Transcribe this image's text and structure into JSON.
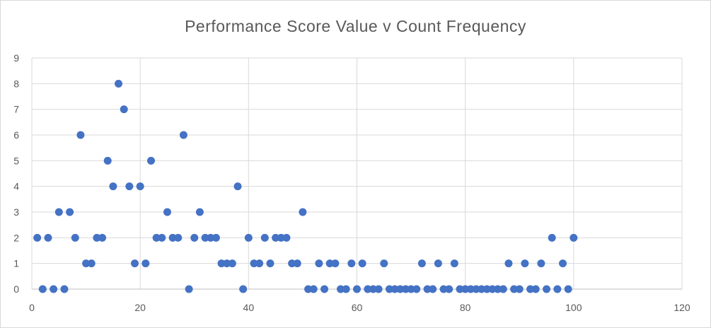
{
  "chart_data": {
    "type": "scatter",
    "title": "Performance Score Value v Count Frequency",
    "xlabel": "",
    "ylabel": "",
    "xlim": [
      0,
      120
    ],
    "ylim": [
      0,
      9
    ],
    "x_ticks": [
      0,
      20,
      40,
      60,
      80,
      100,
      120
    ],
    "y_ticks": [
      0,
      1,
      2,
      3,
      4,
      5,
      6,
      7,
      8,
      9
    ],
    "grid": true,
    "legend": "none",
    "marker_color": "#4472C4",
    "points": [
      [
        1,
        2
      ],
      [
        2,
        0
      ],
      [
        3,
        2
      ],
      [
        4,
        0
      ],
      [
        5,
        3
      ],
      [
        6,
        0
      ],
      [
        7,
        3
      ],
      [
        8,
        2
      ],
      [
        9,
        6
      ],
      [
        10,
        1
      ],
      [
        11,
        1
      ],
      [
        12,
        2
      ],
      [
        13,
        2
      ],
      [
        14,
        5
      ],
      [
        15,
        4
      ],
      [
        16,
        8
      ],
      [
        17,
        7
      ],
      [
        18,
        4
      ],
      [
        19,
        1
      ],
      [
        20,
        4
      ],
      [
        21,
        1
      ],
      [
        22,
        5
      ],
      [
        23,
        2
      ],
      [
        24,
        2
      ],
      [
        25,
        3
      ],
      [
        26,
        2
      ],
      [
        27,
        2
      ],
      [
        28,
        6
      ],
      [
        29,
        0
      ],
      [
        30,
        2
      ],
      [
        31,
        3
      ],
      [
        32,
        2
      ],
      [
        33,
        2
      ],
      [
        34,
        2
      ],
      [
        35,
        1
      ],
      [
        36,
        1
      ],
      [
        37,
        1
      ],
      [
        38,
        4
      ],
      [
        39,
        0
      ],
      [
        40,
        2
      ],
      [
        41,
        1
      ],
      [
        42,
        1
      ],
      [
        43,
        2
      ],
      [
        44,
        1
      ],
      [
        45,
        2
      ],
      [
        46,
        2
      ],
      [
        47,
        2
      ],
      [
        48,
        1
      ],
      [
        49,
        1
      ],
      [
        50,
        3
      ],
      [
        51,
        0
      ],
      [
        52,
        0
      ],
      [
        53,
        1
      ],
      [
        54,
        0
      ],
      [
        55,
        1
      ],
      [
        56,
        1
      ],
      [
        57,
        0
      ],
      [
        58,
        0
      ],
      [
        59,
        1
      ],
      [
        60,
        0
      ],
      [
        61,
        1
      ],
      [
        62,
        0
      ],
      [
        63,
        0
      ],
      [
        64,
        0
      ],
      [
        65,
        1
      ],
      [
        66,
        0
      ],
      [
        67,
        0
      ],
      [
        68,
        0
      ],
      [
        69,
        0
      ],
      [
        70,
        0
      ],
      [
        71,
        0
      ],
      [
        72,
        1
      ],
      [
        73,
        0
      ],
      [
        74,
        0
      ],
      [
        75,
        1
      ],
      [
        76,
        0
      ],
      [
        77,
        0
      ],
      [
        78,
        1
      ],
      [
        79,
        0
      ],
      [
        80,
        0
      ],
      [
        81,
        0
      ],
      [
        82,
        0
      ],
      [
        83,
        0
      ],
      [
        84,
        0
      ],
      [
        85,
        0
      ],
      [
        86,
        0
      ],
      [
        87,
        0
      ],
      [
        88,
        1
      ],
      [
        89,
        0
      ],
      [
        90,
        0
      ],
      [
        91,
        1
      ],
      [
        92,
        0
      ],
      [
        93,
        0
      ],
      [
        94,
        1
      ],
      [
        95,
        0
      ],
      [
        96,
        2
      ],
      [
        97,
        0
      ],
      [
        98,
        1
      ],
      [
        99,
        0
      ],
      [
        100,
        2
      ]
    ]
  }
}
